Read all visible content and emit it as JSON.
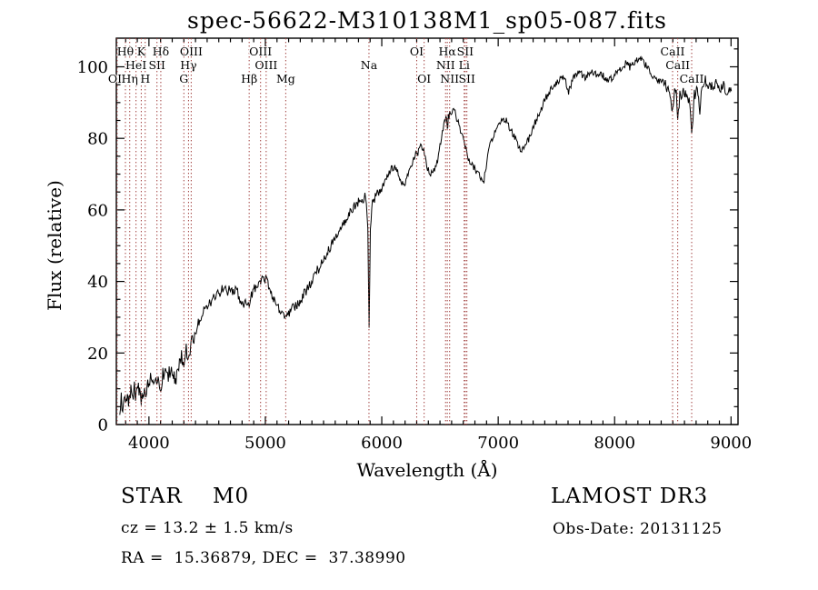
{
  "chart_data": {
    "type": "line",
    "title": "spec-56622-M310138M1_sp05-087.fits",
    "xlabel": "Wavelength (Å)",
    "ylabel": "Flux (relative)",
    "xlim": [
      3720,
      9060
    ],
    "ylim": [
      0,
      108
    ],
    "x_ticks": [
      4000,
      5000,
      6000,
      7000,
      8000,
      9000
    ],
    "y_ticks": [
      0,
      20,
      40,
      60,
      80,
      100
    ],
    "x_minor_step": 100,
    "y_minor_step": 5,
    "legend": "none",
    "grid": "off",
    "colors": {
      "trace": "#000000",
      "marker_line": "#9e3a38",
      "marker_label": "#7c2523",
      "axis": "#000000"
    },
    "spectral_lines": [
      {
        "label": "OII",
        "wl": 3727,
        "row": 3
      },
      {
        "label": "Hθ",
        "wl": 3798,
        "row": 1
      },
      {
        "label": "Hη",
        "wl": 3835,
        "row": 3
      },
      {
        "label": "HeI",
        "wl": 3889,
        "row": 2
      },
      {
        "label": "K",
        "wl": 3934,
        "row": 1
      },
      {
        "label": "H",
        "wl": 3968,
        "row": 3
      },
      {
        "label": "SII",
        "wl": 4069,
        "row": 2
      },
      {
        "label": "Hδ",
        "wl": 4102,
        "row": 1
      },
      {
        "label": "G",
        "wl": 4300,
        "row": 3
      },
      {
        "label": "Hγ",
        "wl": 4340,
        "row": 2
      },
      {
        "label": "OIII",
        "wl": 4363,
        "row": 1
      },
      {
        "label": "Hβ",
        "wl": 4861,
        "row": 3
      },
      {
        "label": "OIII",
        "wl": 4959,
        "row": 1
      },
      {
        "label": "OIII",
        "wl": 5007,
        "row": 2
      },
      {
        "label": "Mg",
        "wl": 5175,
        "row": 3
      },
      {
        "label": "Na",
        "wl": 5890,
        "row": 2
      },
      {
        "label": "OI",
        "wl": 6300,
        "row": 1
      },
      {
        "label": "OI",
        "wl": 6364,
        "row": 3
      },
      {
        "label": "NII",
        "wl": 6548,
        "row": 2
      },
      {
        "label": "Hα",
        "wl": 6563,
        "row": 1
      },
      {
        "label": "NII",
        "wl": 6583,
        "row": 3
      },
      {
        "label": "Li",
        "wl": 6708,
        "row": 2
      },
      {
        "label": "SII",
        "wl": 6717,
        "row": 1
      },
      {
        "label": "SII",
        "wl": 6731,
        "row": 3
      },
      {
        "label": "CaII",
        "wl": 8498,
        "row": 1
      },
      {
        "label": "CaII",
        "wl": 8542,
        "row": 2
      },
      {
        "label": "CaII",
        "wl": 8662,
        "row": 3
      }
    ],
    "spectrum": [
      [
        3750,
        2
      ],
      [
        3762,
        7
      ],
      [
        3775,
        4
      ],
      [
        3788,
        8
      ],
      [
        3800,
        6
      ],
      [
        3815,
        9
      ],
      [
        3830,
        6
      ],
      [
        3845,
        9
      ],
      [
        3860,
        7
      ],
      [
        3875,
        10
      ],
      [
        3890,
        8
      ],
      [
        3905,
        11
      ],
      [
        3920,
        9
      ],
      [
        3934,
        7
      ],
      [
        3950,
        10
      ],
      [
        3968,
        8
      ],
      [
        3985,
        11
      ],
      [
        4000,
        12
      ],
      [
        4020,
        14
      ],
      [
        4040,
        11
      ],
      [
        4060,
        13
      ],
      [
        4080,
        12
      ],
      [
        4102,
        11
      ],
      [
        4120,
        14
      ],
      [
        4140,
        15
      ],
      [
        4160,
        13
      ],
      [
        4180,
        15
      ],
      [
        4200,
        14
      ],
      [
        4227,
        12
      ],
      [
        4250,
        16
      ],
      [
        4280,
        19
      ],
      [
        4300,
        18
      ],
      [
        4320,
        21
      ],
      [
        4340,
        19
      ],
      [
        4360,
        22
      ],
      [
        4380,
        24
      ],
      [
        4400,
        26
      ],
      [
        4430,
        29
      ],
      [
        4460,
        31
      ],
      [
        4490,
        33
      ],
      [
        4520,
        34
      ],
      [
        4550,
        35
      ],
      [
        4580,
        36
      ],
      [
        4610,
        37
      ],
      [
        4640,
        38
      ],
      [
        4670,
        37
      ],
      [
        4700,
        38
      ],
      [
        4730,
        37
      ],
      [
        4755,
        38
      ],
      [
        4775,
        35
      ],
      [
        4795,
        33
      ],
      [
        4815,
        34
      ],
      [
        4835,
        35
      ],
      [
        4861,
        33
      ],
      [
        4880,
        36
      ],
      [
        4900,
        38
      ],
      [
        4930,
        39
      ],
      [
        4960,
        40
      ],
      [
        4990,
        41
      ],
      [
        5010,
        40
      ],
      [
        5040,
        38
      ],
      [
        5070,
        35
      ],
      [
        5100,
        33
      ],
      [
        5130,
        32
      ],
      [
        5170,
        30
      ],
      [
        5200,
        31
      ],
      [
        5230,
        33
      ],
      [
        5260,
        33
      ],
      [
        5290,
        34
      ],
      [
        5320,
        36
      ],
      [
        5350,
        37
      ],
      [
        5380,
        39
      ],
      [
        5410,
        41
      ],
      [
        5440,
        43
      ],
      [
        5470,
        44
      ],
      [
        5500,
        46
      ],
      [
        5530,
        48
      ],
      [
        5560,
        50
      ],
      [
        5590,
        51
      ],
      [
        5620,
        53
      ],
      [
        5650,
        55
      ],
      [
        5680,
        57
      ],
      [
        5710,
        58
      ],
      [
        5740,
        60
      ],
      [
        5770,
        61
      ],
      [
        5800,
        62
      ],
      [
        5830,
        63
      ],
      [
        5862,
        64
      ],
      [
        5880,
        55
      ],
      [
        5891,
        27
      ],
      [
        5902,
        55
      ],
      [
        5920,
        62
      ],
      [
        5950,
        64
      ],
      [
        5980,
        65
      ],
      [
        6010,
        67
      ],
      [
        6040,
        69
      ],
      [
        6070,
        71
      ],
      [
        6100,
        72
      ],
      [
        6130,
        71
      ],
      [
        6160,
        68
      ],
      [
        6190,
        67
      ],
      [
        6220,
        69
      ],
      [
        6250,
        72
      ],
      [
        6280,
        75
      ],
      [
        6310,
        76
      ],
      [
        6340,
        78
      ],
      [
        6360,
        77
      ],
      [
        6380,
        73
      ],
      [
        6400,
        71
      ],
      [
        6420,
        70
      ],
      [
        6440,
        71
      ],
      [
        6460,
        72
      ],
      [
        6480,
        74
      ],
      [
        6500,
        78
      ],
      [
        6520,
        82
      ],
      [
        6540,
        85
      ],
      [
        6556,
        86
      ],
      [
        6563,
        82
      ],
      [
        6572,
        86
      ],
      [
        6590,
        87
      ],
      [
        6610,
        88
      ],
      [
        6630,
        87
      ],
      [
        6650,
        85
      ],
      [
        6670,
        83
      ],
      [
        6690,
        81
      ],
      [
        6710,
        78
      ],
      [
        6730,
        76
      ],
      [
        6750,
        74
      ],
      [
        6770,
        73
      ],
      [
        6790,
        72
      ],
      [
        6810,
        71
      ],
      [
        6830,
        70
      ],
      [
        6850,
        69
      ],
      [
        6872,
        67
      ],
      [
        6890,
        71
      ],
      [
        6910,
        75
      ],
      [
        6930,
        78
      ],
      [
        6950,
        80
      ],
      [
        6970,
        82
      ],
      [
        6990,
        83
      ],
      [
        7010,
        84
      ],
      [
        7040,
        85
      ],
      [
        7070,
        85
      ],
      [
        7100,
        83
      ],
      [
        7130,
        81
      ],
      [
        7160,
        79
      ],
      [
        7190,
        77
      ],
      [
        7220,
        77
      ],
      [
        7250,
        79
      ],
      [
        7280,
        81
      ],
      [
        7310,
        84
      ],
      [
        7340,
        86
      ],
      [
        7370,
        88
      ],
      [
        7400,
        91
      ],
      [
        7430,
        92
      ],
      [
        7460,
        94
      ],
      [
        7490,
        95
      ],
      [
        7520,
        96
      ],
      [
        7550,
        97
      ],
      [
        7580,
        96
      ],
      [
        7605,
        93
      ],
      [
        7625,
        95
      ],
      [
        7650,
        97
      ],
      [
        7680,
        98
      ],
      [
        7710,
        98
      ],
      [
        7740,
        97
      ],
      [
        7770,
        98
      ],
      [
        7800,
        99
      ],
      [
        7830,
        98
      ],
      [
        7860,
        97
      ],
      [
        7890,
        98
      ],
      [
        7920,
        97
      ],
      [
        7950,
        96
      ],
      [
        7980,
        97
      ],
      [
        8010,
        98
      ],
      [
        8040,
        99
      ],
      [
        8070,
        100
      ],
      [
        8100,
        101
      ],
      [
        8130,
        100
      ],
      [
        8160,
        101
      ],
      [
        8190,
        102
      ],
      [
        8220,
        103
      ],
      [
        8250,
        101
      ],
      [
        8280,
        100
      ],
      [
        8310,
        98
      ],
      [
        8340,
        97
      ],
      [
        8370,
        96
      ],
      [
        8400,
        96
      ],
      [
        8430,
        95
      ],
      [
        8460,
        94
      ],
      [
        8482,
        92
      ],
      [
        8498,
        87
      ],
      [
        8515,
        93
      ],
      [
        8530,
        92
      ],
      [
        8542,
        84
      ],
      [
        8560,
        92
      ],
      [
        8590,
        93
      ],
      [
        8615,
        92
      ],
      [
        8640,
        91
      ],
      [
        8662,
        81
      ],
      [
        8685,
        92
      ],
      [
        8710,
        94
      ],
      [
        8732,
        88
      ],
      [
        8750,
        95
      ],
      [
        8780,
        96
      ],
      [
        8810,
        95
      ],
      [
        8840,
        94
      ],
      [
        8870,
        95
      ],
      [
        8900,
        94
      ],
      [
        8930,
        95
      ],
      [
        8960,
        93
      ],
      [
        8990,
        94
      ],
      [
        9010,
        92
      ]
    ]
  },
  "footer": {
    "object_class": "STAR    M0",
    "cz": "cz = 13.2 ± 1.5 km/s",
    "ra_dec": "RA =  15.36879, DEC =  37.38990",
    "survey": "LAMOST DR3",
    "obs_date": "Obs-Date: 20131125"
  }
}
